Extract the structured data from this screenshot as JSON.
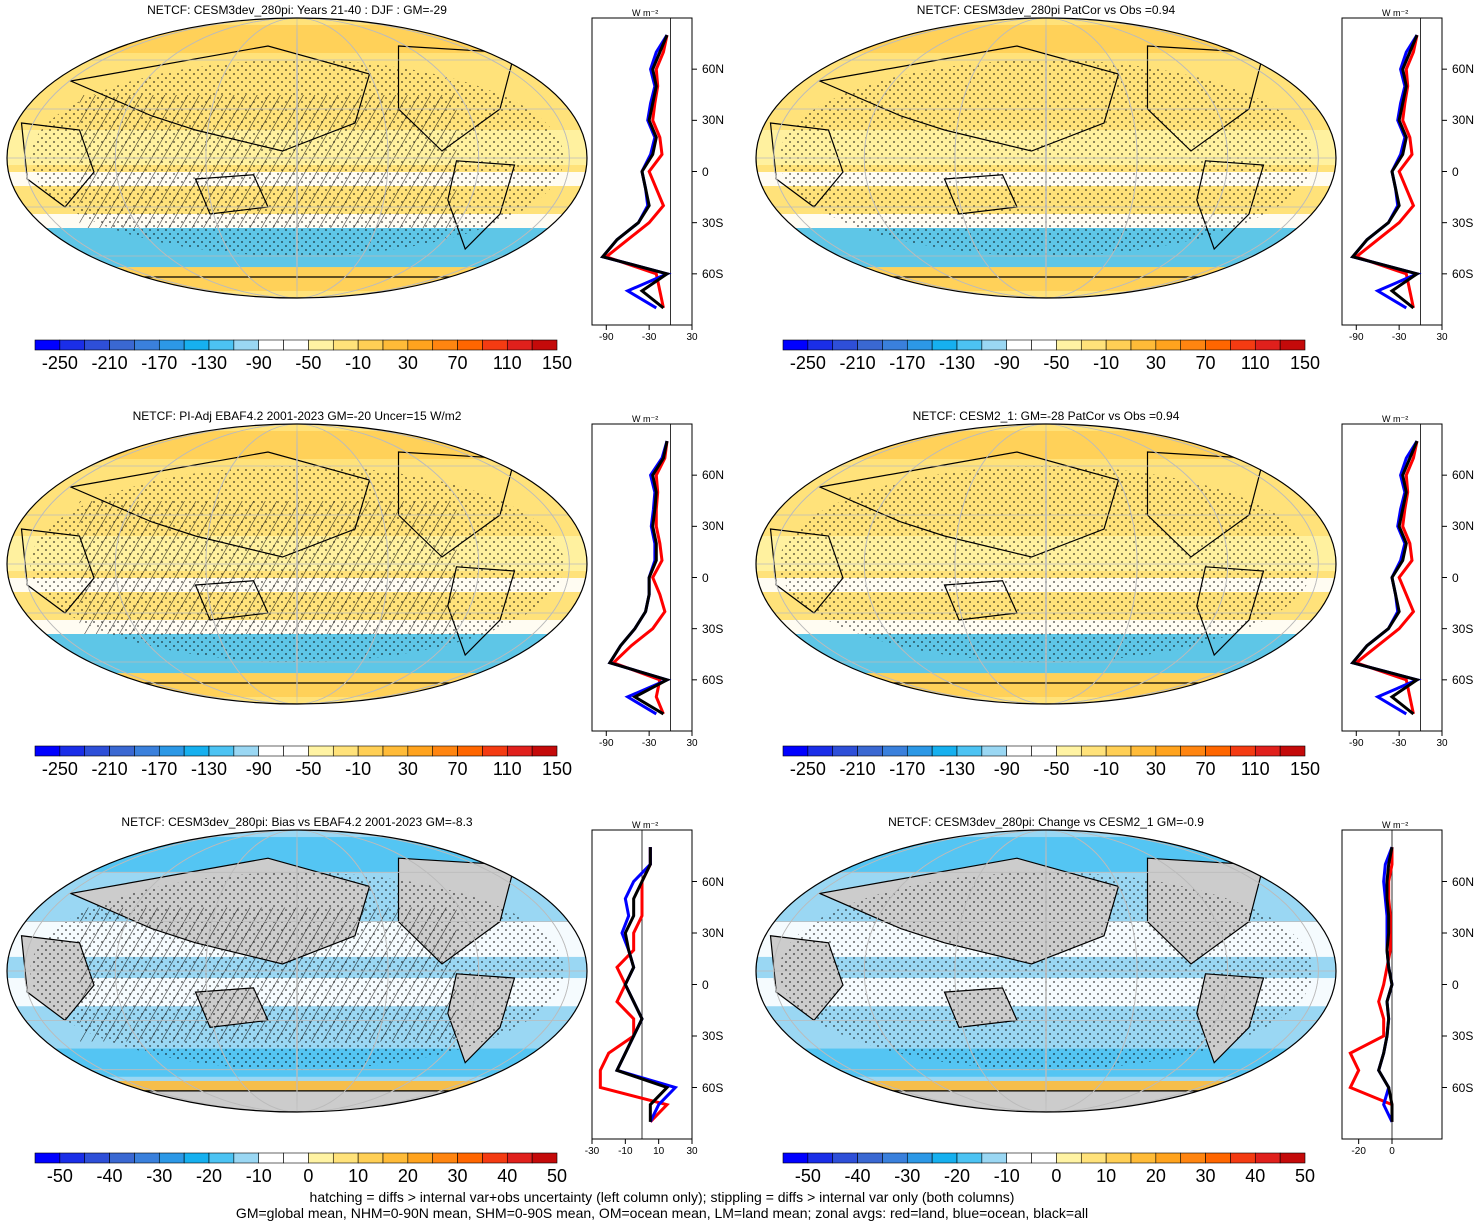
{
  "units_label": "W m⁻²",
  "colors": {
    "land": "#cccccc",
    "zonal_land": "#ff0000",
    "zonal_ocean": "#0000ff",
    "zonal_all": "#000000",
    "scale_main": [
      "#0000ff",
      "#1a2ee8",
      "#2e4fd8",
      "#3a68d2",
      "#3a80dc",
      "#2c98e6",
      "#16b0ef",
      "#4cc3f3",
      "#9ad7f3",
      "#ffffff",
      "#ffffff",
      "#fff3a3",
      "#ffe27a",
      "#ffcf55",
      "#ffbb38",
      "#ffa31e",
      "#ff8510",
      "#ff6600",
      "#f43b12",
      "#e0201c",
      "#c40a0a"
    ],
    "scale_diff": [
      "#0000ff",
      "#1a2ee8",
      "#2e4fd8",
      "#3a68d2",
      "#3a80dc",
      "#2c98e6",
      "#16b0ef",
      "#4cc3f3",
      "#9ad7f3",
      "#ffffff",
      "#ffffff",
      "#fff3a3",
      "#ffe27a",
      "#ffcf55",
      "#ffbb38",
      "#ffa31e",
      "#ff8510",
      "#ff6600",
      "#f43b12",
      "#e0201c",
      "#c40a0a"
    ]
  },
  "panels": [
    {
      "title": "NETCF: CESM3dev_280pi: Years 21-40 : DJF : GM=-29",
      "scale": "main",
      "hatch": true,
      "profile_ticks": [
        "-90",
        "-30",
        "30"
      ],
      "lat_labels": [
        "60N",
        "30N",
        "0",
        "30S",
        "60S"
      ]
    },
    {
      "title": "NETCF: CESM3dev_280pi PatCor vs Obs =0.94",
      "scale": "main",
      "hatch": false,
      "profile_ticks": [
        "-90",
        "-30",
        "30"
      ],
      "lat_labels": [
        "60N",
        "30N",
        "0",
        "30S",
        "60S"
      ]
    },
    {
      "title": "NETCF: PI-Adj EBAF4.2 2001-2023 GM=-20 Uncer=15 W/m2",
      "scale": "main",
      "hatch": true,
      "profile_ticks": [
        "-90",
        "-30",
        "30"
      ],
      "lat_labels": [
        "60N",
        "30N",
        "0",
        "30S",
        "60S"
      ]
    },
    {
      "title": "NETCF: CESM2_1: GM=-28 PatCor vs Obs =0.94",
      "scale": "main",
      "hatch": false,
      "profile_ticks": [
        "-90",
        "-30",
        "30"
      ],
      "lat_labels": [
        "60N",
        "30N",
        "0",
        "30S",
        "60S"
      ]
    },
    {
      "title": "NETCF: CESM3dev_280pi: Bias vs EBAF4.2 2001-2023 GM=-8.3",
      "scale": "diff",
      "hatch": true,
      "profile_ticks": [
        "-30",
        "-10",
        "10",
        "30"
      ],
      "lat_labels": [
        "60N",
        "30N",
        "0",
        "30S",
        "60S"
      ]
    },
    {
      "title": "NETCF: CESM3dev_280pi: Change vs CESM2_1 GM=-0.9",
      "scale": "diff",
      "hatch": false,
      "profile_ticks": [
        "-20",
        "0"
      ],
      "lat_labels": [
        "60N",
        "30N",
        "0",
        "30S",
        "60S"
      ]
    }
  ],
  "colorbar_labels": {
    "main": [
      "-250",
      "-210",
      "-170",
      "-130",
      "-90",
      "-50",
      "-10",
      "30",
      "70",
      "110",
      "150"
    ],
    "diff": [
      "-50",
      "-40",
      "-30",
      "-20",
      "-10",
      "0",
      "10",
      "20",
      "30",
      "40",
      "50"
    ]
  },
  "footer": {
    "line1": "hatching = diffs > internal var+obs uncertainty (left column only); stippling = diffs > internal var only (both columns)",
    "line2": "GM=global mean, NHM=0-90N mean, SHM=0-90S mean, OM=ocean mean, LM=land mean; zonal avgs: red=land, blue=ocean, black=all"
  },
  "chart_data": {
    "type": "map",
    "projection": "robinson",
    "variable": "NETCF",
    "latitudes": [
      80,
      70,
      60,
      50,
      40,
      30,
      20,
      10,
      0,
      -10,
      -20,
      -30,
      -40,
      -50,
      -60,
      -70,
      -80
    ],
    "panels_zonal_avgs": [
      {
        "all": [
          -5,
          -15,
          -25,
          -20,
          -25,
          -30,
          -20,
          -25,
          -40,
          -35,
          -30,
          -45,
          -75,
          -95,
          -5,
          -40,
          -10
        ],
        "ocean": [
          -5,
          -20,
          -28,
          -22,
          -28,
          -32,
          -22,
          -28,
          -40,
          -35,
          -32,
          -45,
          -75,
          -95,
          -5,
          -60,
          -20
        ],
        "land": [
          -5,
          -10,
          -20,
          -18,
          -22,
          -25,
          -15,
          -12,
          -30,
          -20,
          -10,
          -30,
          -60,
          -90,
          -20,
          -15,
          -10
        ]
      },
      {
        "all": [
          -5,
          -15,
          -25,
          -20,
          -25,
          -30,
          -20,
          -25,
          -40,
          -35,
          -30,
          -45,
          -75,
          -95,
          -5,
          -40,
          -10
        ],
        "ocean": [
          -5,
          -20,
          -28,
          -22,
          -28,
          -32,
          -22,
          -28,
          -40,
          -35,
          -32,
          -45,
          -75,
          -95,
          -5,
          -60,
          -20
        ],
        "land": [
          -5,
          -10,
          -20,
          -18,
          -22,
          -25,
          -15,
          -12,
          -30,
          -20,
          -10,
          -30,
          -60,
          -90,
          -20,
          -15,
          -10
        ]
      },
      {
        "all": [
          -5,
          -10,
          -25,
          -20,
          -22,
          -25,
          -20,
          -20,
          -30,
          -30,
          -35,
          -50,
          -70,
          -85,
          -5,
          -50,
          -10
        ],
        "ocean": [
          -5,
          -12,
          -28,
          -22,
          -24,
          -27,
          -22,
          -22,
          -30,
          -30,
          -35,
          -50,
          -70,
          -85,
          -5,
          -60,
          -20
        ],
        "land": [
          -5,
          -8,
          -20,
          -18,
          -20,
          -20,
          -15,
          -12,
          -25,
          -15,
          -8,
          -25,
          -55,
          -80,
          -15,
          -20,
          -10
        ]
      },
      {
        "all": [
          -5,
          -15,
          -25,
          -20,
          -25,
          -30,
          -20,
          -25,
          -40,
          -35,
          -30,
          -45,
          -75,
          -95,
          -5,
          -40,
          -10
        ],
        "ocean": [
          -5,
          -20,
          -28,
          -22,
          -28,
          -32,
          -22,
          -28,
          -40,
          -35,
          -32,
          -45,
          -75,
          -95,
          -5,
          -60,
          -20
        ],
        "land": [
          -5,
          -10,
          -20,
          -18,
          -22,
          -25,
          -15,
          -12,
          -30,
          -20,
          -10,
          -30,
          -60,
          -90,
          -20,
          -15,
          -10
        ]
      },
      {
        "all": [
          5,
          5,
          0,
          -5,
          -5,
          -10,
          -8,
          -5,
          -10,
          -5,
          0,
          -5,
          -10,
          -15,
          15,
          5,
          5
        ],
        "ocean": [
          5,
          5,
          -5,
          -10,
          -8,
          -12,
          -8,
          -5,
          -10,
          -5,
          0,
          -5,
          -10,
          -15,
          20,
          10,
          5
        ],
        "land": [
          5,
          5,
          0,
          0,
          0,
          -5,
          -5,
          -15,
          -10,
          -15,
          -5,
          -5,
          -20,
          -25,
          -25,
          15,
          5
        ]
      },
      {
        "all": [
          0,
          -2,
          -3,
          -3,
          -2,
          -2,
          -3,
          -2,
          0,
          -3,
          -2,
          -3,
          -5,
          -8,
          -2,
          0,
          0
        ],
        "ocean": [
          0,
          -4,
          -5,
          -4,
          -3,
          -3,
          -3,
          -2,
          0,
          -3,
          -2,
          -3,
          -5,
          -8,
          -2,
          -5,
          0
        ],
        "land": [
          0,
          0,
          -2,
          -2,
          -1,
          -1,
          -1,
          -3,
          -5,
          -8,
          -5,
          -5,
          -25,
          -20,
          -25,
          0,
          0
        ]
      }
    ]
  }
}
